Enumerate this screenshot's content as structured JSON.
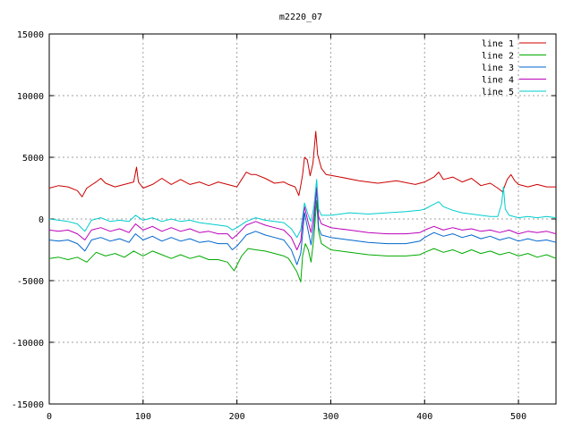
{
  "chart_data": {
    "type": "line",
    "title": "m2220_07",
    "xlabel": "",
    "ylabel": "",
    "xlim": [
      0,
      540
    ],
    "ylim": [
      -15000,
      15000
    ],
    "x_ticks": [
      0,
      100,
      200,
      300,
      400,
      500
    ],
    "y_ticks": [
      -15000,
      -10000,
      -5000,
      0,
      5000,
      10000,
      15000
    ],
    "x_tick_labels": [
      "0",
      "100",
      "200",
      "300",
      "400",
      "500"
    ],
    "y_tick_labels": [
      "-15000",
      "-10000",
      "-5000",
      "0",
      "5000",
      "10000",
      "15000"
    ],
    "grid": true,
    "legend_position": "top-right",
    "series": [
      {
        "name": "line 1",
        "color": "#cc0000",
        "points": [
          [
            0,
            2500
          ],
          [
            10,
            2700
          ],
          [
            20,
            2600
          ],
          [
            30,
            2300
          ],
          [
            35,
            1800
          ],
          [
            40,
            2500
          ],
          [
            50,
            3000
          ],
          [
            55,
            3300
          ],
          [
            60,
            2900
          ],
          [
            70,
            2600
          ],
          [
            80,
            2800
          ],
          [
            90,
            3000
          ],
          [
            93,
            4200
          ],
          [
            95,
            3000
          ],
          [
            100,
            2500
          ],
          [
            110,
            2800
          ],
          [
            120,
            3300
          ],
          [
            130,
            2800
          ],
          [
            140,
            3200
          ],
          [
            150,
            2800
          ],
          [
            160,
            3000
          ],
          [
            170,
            2700
          ],
          [
            180,
            3000
          ],
          [
            190,
            2800
          ],
          [
            200,
            2600
          ],
          [
            205,
            3200
          ],
          [
            210,
            3800
          ],
          [
            215,
            3600
          ],
          [
            220,
            3600
          ],
          [
            230,
            3300
          ],
          [
            240,
            2900
          ],
          [
            250,
            3000
          ],
          [
            255,
            2800
          ],
          [
            262,
            2600
          ],
          [
            266,
            1900
          ],
          [
            268,
            2700
          ],
          [
            270,
            3600
          ],
          [
            272,
            5000
          ],
          [
            275,
            4800
          ],
          [
            278,
            3500
          ],
          [
            281,
            4500
          ],
          [
            284,
            7100
          ],
          [
            286,
            5200
          ],
          [
            290,
            4100
          ],
          [
            295,
            3600
          ],
          [
            310,
            3400
          ],
          [
            330,
            3100
          ],
          [
            350,
            2900
          ],
          [
            370,
            3100
          ],
          [
            390,
            2800
          ],
          [
            400,
            3000
          ],
          [
            410,
            3400
          ],
          [
            415,
            3800
          ],
          [
            420,
            3200
          ],
          [
            430,
            3400
          ],
          [
            440,
            3000
          ],
          [
            450,
            3300
          ],
          [
            460,
            2700
          ],
          [
            470,
            2900
          ],
          [
            478,
            2500
          ],
          [
            483,
            2200
          ],
          [
            488,
            3200
          ],
          [
            492,
            3600
          ],
          [
            496,
            3100
          ],
          [
            500,
            2800
          ],
          [
            510,
            2600
          ],
          [
            520,
            2800
          ],
          [
            530,
            2600
          ],
          [
            540,
            2600
          ]
        ]
      },
      {
        "name": "line 2",
        "color": "#00aa00",
        "points": [
          [
            0,
            -3200
          ],
          [
            10,
            -3100
          ],
          [
            20,
            -3300
          ],
          [
            30,
            -3100
          ],
          [
            40,
            -3500
          ],
          [
            50,
            -2700
          ],
          [
            60,
            -3000
          ],
          [
            70,
            -2800
          ],
          [
            80,
            -3100
          ],
          [
            90,
            -2600
          ],
          [
            100,
            -3000
          ],
          [
            110,
            -2600
          ],
          [
            120,
            -2900
          ],
          [
            130,
            -3200
          ],
          [
            140,
            -2900
          ],
          [
            150,
            -3200
          ],
          [
            160,
            -3000
          ],
          [
            170,
            -3300
          ],
          [
            180,
            -3300
          ],
          [
            190,
            -3500
          ],
          [
            197,
            -4200
          ],
          [
            205,
            -3000
          ],
          [
            212,
            -2400
          ],
          [
            220,
            -2500
          ],
          [
            230,
            -2600
          ],
          [
            240,
            -2800
          ],
          [
            250,
            -3000
          ],
          [
            255,
            -3200
          ],
          [
            260,
            -3800
          ],
          [
            264,
            -4300
          ],
          [
            268,
            -5100
          ],
          [
            270,
            -3000
          ],
          [
            273,
            -2000
          ],
          [
            276,
            -2500
          ],
          [
            279,
            -3500
          ],
          [
            282,
            -1500
          ],
          [
            285,
            1500
          ],
          [
            287,
            -1000
          ],
          [
            290,
            -2000
          ],
          [
            300,
            -2500
          ],
          [
            320,
            -2700
          ],
          [
            340,
            -2900
          ],
          [
            360,
            -3000
          ],
          [
            380,
            -3000
          ],
          [
            395,
            -2900
          ],
          [
            400,
            -2700
          ],
          [
            410,
            -2400
          ],
          [
            420,
            -2700
          ],
          [
            430,
            -2500
          ],
          [
            440,
            -2800
          ],
          [
            450,
            -2500
          ],
          [
            460,
            -2800
          ],
          [
            470,
            -2600
          ],
          [
            480,
            -2900
          ],
          [
            490,
            -2700
          ],
          [
            500,
            -3000
          ],
          [
            510,
            -2800
          ],
          [
            520,
            -3100
          ],
          [
            530,
            -2900
          ],
          [
            540,
            -3200
          ]
        ]
      },
      {
        "name": "line 3",
        "color": "#0066cc",
        "points": [
          [
            0,
            -1700
          ],
          [
            10,
            -1800
          ],
          [
            20,
            -1700
          ],
          [
            30,
            -2000
          ],
          [
            38,
            -2600
          ],
          [
            45,
            -1700
          ],
          [
            55,
            -1500
          ],
          [
            65,
            -1800
          ],
          [
            75,
            -1600
          ],
          [
            85,
            -1900
          ],
          [
            92,
            -1200
          ],
          [
            100,
            -1700
          ],
          [
            110,
            -1400
          ],
          [
            120,
            -1800
          ],
          [
            130,
            -1500
          ],
          [
            140,
            -1800
          ],
          [
            150,
            -1600
          ],
          [
            160,
            -1900
          ],
          [
            170,
            -1800
          ],
          [
            180,
            -2000
          ],
          [
            190,
            -2000
          ],
          [
            195,
            -2500
          ],
          [
            200,
            -2200
          ],
          [
            210,
            -1300
          ],
          [
            220,
            -1000
          ],
          [
            230,
            -1300
          ],
          [
            240,
            -1500
          ],
          [
            250,
            -1700
          ],
          [
            258,
            -2500
          ],
          [
            264,
            -3700
          ],
          [
            268,
            -2800
          ],
          [
            270,
            -1200
          ],
          [
            272,
            500
          ],
          [
            276,
            -1000
          ],
          [
            279,
            -2100
          ],
          [
            282,
            -500
          ],
          [
            285,
            2500
          ],
          [
            287,
            -700
          ],
          [
            290,
            -1300
          ],
          [
            300,
            -1500
          ],
          [
            320,
            -1700
          ],
          [
            340,
            -1900
          ],
          [
            360,
            -2000
          ],
          [
            380,
            -2000
          ],
          [
            395,
            -1800
          ],
          [
            400,
            -1500
          ],
          [
            410,
            -1100
          ],
          [
            420,
            -1400
          ],
          [
            430,
            -1200
          ],
          [
            440,
            -1500
          ],
          [
            450,
            -1300
          ],
          [
            460,
            -1600
          ],
          [
            470,
            -1400
          ],
          [
            480,
            -1700
          ],
          [
            490,
            -1500
          ],
          [
            500,
            -1800
          ],
          [
            510,
            -1600
          ],
          [
            520,
            -1800
          ],
          [
            530,
            -1700
          ],
          [
            540,
            -1900
          ]
        ]
      },
      {
        "name": "line 4",
        "color": "#bb00bb",
        "points": [
          [
            0,
            -900
          ],
          [
            10,
            -1000
          ],
          [
            20,
            -900
          ],
          [
            30,
            -1200
          ],
          [
            38,
            -1700
          ],
          [
            45,
            -900
          ],
          [
            55,
            -700
          ],
          [
            65,
            -1000
          ],
          [
            75,
            -800
          ],
          [
            85,
            -1100
          ],
          [
            92,
            -400
          ],
          [
            100,
            -900
          ],
          [
            110,
            -600
          ],
          [
            120,
            -1000
          ],
          [
            130,
            -700
          ],
          [
            140,
            -1000
          ],
          [
            150,
            -800
          ],
          [
            160,
            -1100
          ],
          [
            170,
            -1000
          ],
          [
            180,
            -1200
          ],
          [
            190,
            -1200
          ],
          [
            195,
            -1600
          ],
          [
            200,
            -1300
          ],
          [
            210,
            -500
          ],
          [
            220,
            -200
          ],
          [
            230,
            -500
          ],
          [
            240,
            -700
          ],
          [
            250,
            -900
          ],
          [
            258,
            -1500
          ],
          [
            264,
            -2500
          ],
          [
            268,
            -1800
          ],
          [
            270,
            -300
          ],
          [
            272,
            1000
          ],
          [
            276,
            -300
          ],
          [
            279,
            -1100
          ],
          [
            282,
            300
          ],
          [
            285,
            2600
          ],
          [
            287,
            200
          ],
          [
            290,
            -400
          ],
          [
            300,
            -700
          ],
          [
            320,
            -900
          ],
          [
            340,
            -1100
          ],
          [
            360,
            -1200
          ],
          [
            380,
            -1200
          ],
          [
            395,
            -1100
          ],
          [
            400,
            -900
          ],
          [
            410,
            -600
          ],
          [
            420,
            -900
          ],
          [
            430,
            -700
          ],
          [
            440,
            -900
          ],
          [
            450,
            -800
          ],
          [
            460,
            -1000
          ],
          [
            470,
            -900
          ],
          [
            480,
            -1100
          ],
          [
            490,
            -900
          ],
          [
            500,
            -1200
          ],
          [
            510,
            -1000
          ],
          [
            520,
            -1100
          ],
          [
            530,
            -1000
          ],
          [
            540,
            -1200
          ]
        ]
      },
      {
        "name": "line 5",
        "color": "#00cccc",
        "points": [
          [
            0,
            0
          ],
          [
            10,
            -100
          ],
          [
            20,
            -200
          ],
          [
            30,
            -400
          ],
          [
            38,
            -1000
          ],
          [
            45,
            -100
          ],
          [
            55,
            100
          ],
          [
            65,
            -200
          ],
          [
            75,
            -100
          ],
          [
            85,
            -200
          ],
          [
            92,
            300
          ],
          [
            100,
            -100
          ],
          [
            110,
            100
          ],
          [
            120,
            -200
          ],
          [
            130,
            0
          ],
          [
            140,
            -200
          ],
          [
            150,
            -100
          ],
          [
            160,
            -300
          ],
          [
            170,
            -400
          ],
          [
            180,
            -500
          ],
          [
            190,
            -600
          ],
          [
            195,
            -900
          ],
          [
            200,
            -700
          ],
          [
            210,
            -200
          ],
          [
            220,
            100
          ],
          [
            230,
            -100
          ],
          [
            240,
            -200
          ],
          [
            250,
            -300
          ],
          [
            258,
            -800
          ],
          [
            264,
            -1500
          ],
          [
            268,
            -900
          ],
          [
            270,
            200
          ],
          [
            272,
            1300
          ],
          [
            276,
            300
          ],
          [
            279,
            -200
          ],
          [
            282,
            1000
          ],
          [
            285,
            3200
          ],
          [
            287,
            800
          ],
          [
            290,
            300
          ],
          [
            300,
            300
          ],
          [
            320,
            500
          ],
          [
            340,
            400
          ],
          [
            360,
            500
          ],
          [
            380,
            600
          ],
          [
            395,
            700
          ],
          [
            400,
            800
          ],
          [
            410,
            1200
          ],
          [
            415,
            1400
          ],
          [
            420,
            1000
          ],
          [
            430,
            700
          ],
          [
            440,
            500
          ],
          [
            450,
            400
          ],
          [
            460,
            300
          ],
          [
            470,
            200
          ],
          [
            478,
            200
          ],
          [
            482,
            1200
          ],
          [
            484,
            2600
          ],
          [
            486,
            800
          ],
          [
            490,
            300
          ],
          [
            500,
            100
          ],
          [
            510,
            200
          ],
          [
            520,
            100
          ],
          [
            530,
            200
          ],
          [
            540,
            100
          ]
        ]
      }
    ]
  }
}
